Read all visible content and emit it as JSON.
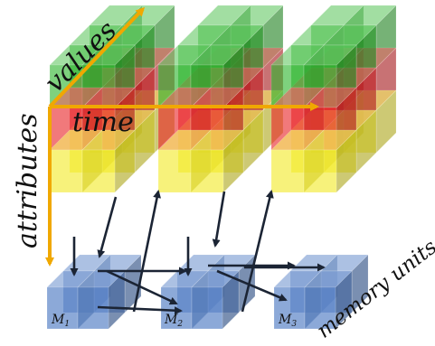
{
  "labels": {
    "values": "values",
    "time": "time",
    "attributes": "attributes",
    "memory_units": "memory units"
  },
  "memory": [
    {
      "name": "M",
      "sub": "1"
    },
    {
      "name": "M",
      "sub": "2"
    },
    {
      "name": "M",
      "sub": "3"
    }
  ],
  "colors": {
    "green": "#2fb52f",
    "red": "#e8262a",
    "yellow": "#f2ea2a",
    "blue": "#5b84c8",
    "arrow_orange": "#f0a800",
    "arrow_dark": "#1b2434",
    "text": "#111111"
  }
}
